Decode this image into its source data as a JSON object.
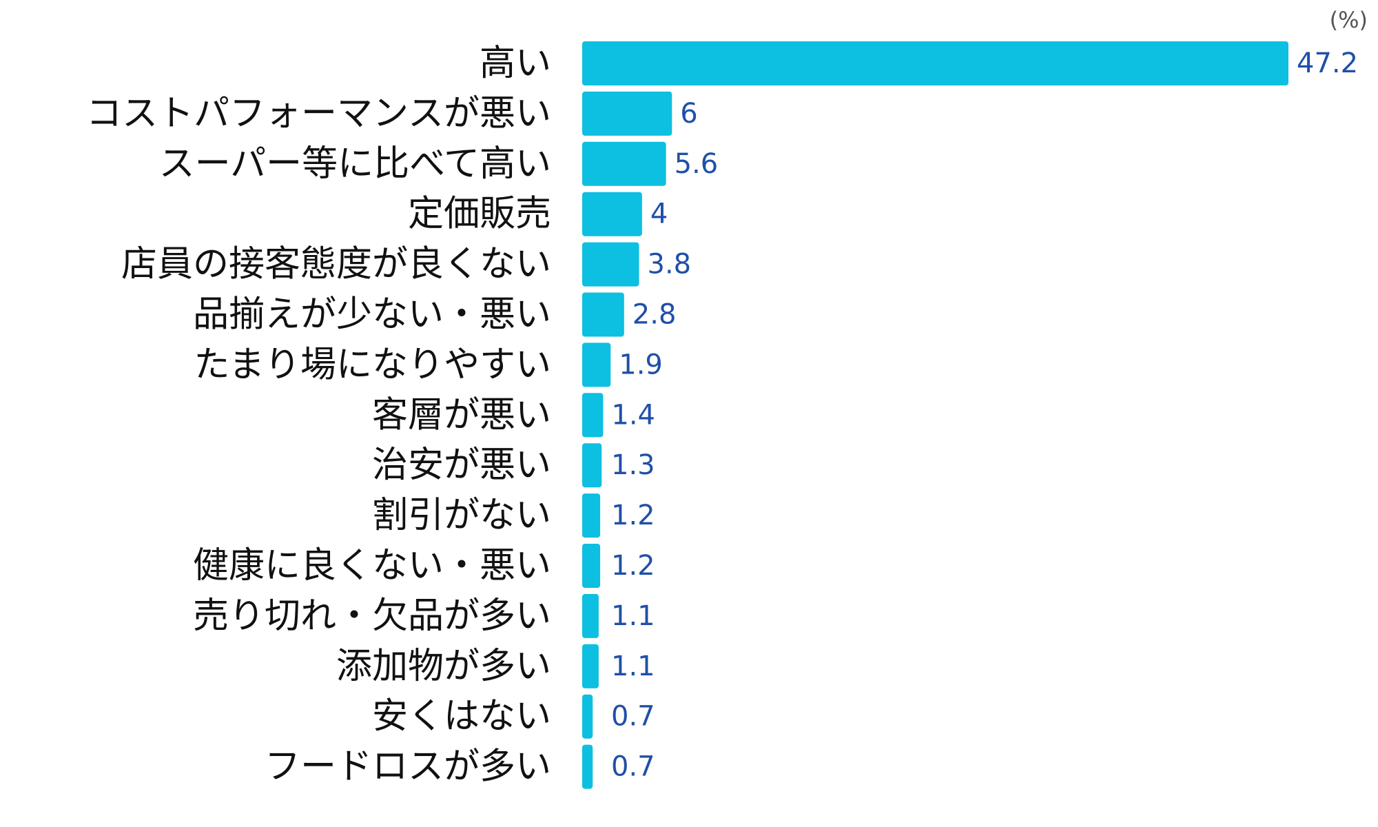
{
  "chart_data": {
    "type": "bar",
    "orientation": "horizontal",
    "unit": "(%)",
    "categories": [
      "高い",
      "コストパフォーマンスが悪い",
      "スーパー等に比べて高い",
      "定価販売",
      "店員の接客態度が良くない",
      "品揃えが少ない・悪い",
      "たまり場になりやすい",
      "客層が悪い",
      "治安が悪い",
      "割引がない",
      "健康に良くない・悪い",
      "売り切れ・欠品が多い",
      "添加物が多い",
      "安くはない",
      "フードロスが多い"
    ],
    "values": [
      47.2,
      6,
      5.6,
      4,
      3.8,
      2.8,
      1.9,
      1.4,
      1.3,
      1.2,
      1.2,
      1.1,
      1.1,
      0.7,
      0.7
    ],
    "xlim": [
      0,
      47.2
    ],
    "grid": false,
    "legend": "none",
    "bar_color": "#0dbfe0",
    "value_label_color": "#1f4fa8"
  }
}
